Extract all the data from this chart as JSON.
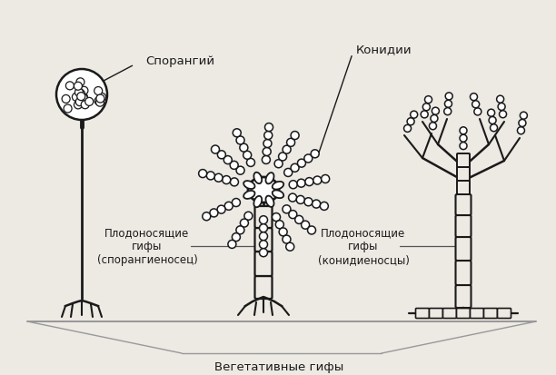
{
  "bg_color": "#ede9e3",
  "line_color": "#1a1a1a",
  "text_color": "#1a1a1a",
  "label_sporangiy": "Спорангий",
  "label_konidii": "Конидии",
  "label_plodo_spor": "Плодоносящие\nгифы\n(спорангиеносец)",
  "label_plodo_kon": "Плодоносящие\nгифы\n(конидиеносцы)",
  "label_vegetativ": "Вегетативные гифы",
  "figsize": [
    6.12,
    4.14
  ],
  "dpi": 100
}
